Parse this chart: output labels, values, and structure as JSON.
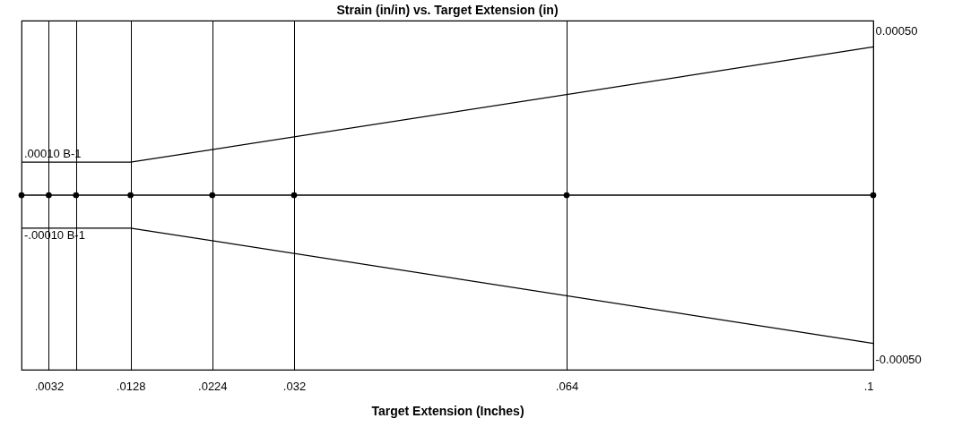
{
  "chart_data": {
    "type": "line",
    "title": "Strain (in/in) vs. Target Extension (in)",
    "xlabel": "Target Extension (Inches)",
    "xlim": [
      0,
      0.1
    ],
    "ylim": [
      -0.00053,
      0.00053
    ],
    "xticks": [
      {
        "value": 0.0032,
        "label": ".0032"
      },
      {
        "value": 0.0064,
        "label": null
      },
      {
        "value": 0.0128,
        "label": ".0128"
      },
      {
        "value": 0.0224,
        "label": ".0224"
      },
      {
        "value": 0.032,
        "label": ".032"
      },
      {
        "value": 0.064,
        "label": ".064"
      },
      {
        "value": 0.1,
        "label": ".1"
      }
    ],
    "yticks": [
      {
        "value": 0.0005,
        "label": "0.00050"
      },
      {
        "value": -0.0005,
        "label": "-0.00050"
      }
    ],
    "grid": "x",
    "series": [
      {
        "color": "#000000",
        "x": [
          0,
          0.0128,
          0.1
        ],
        "values": [
          0.0001,
          0.0001,
          0.00045
        ],
        "marker": "none"
      },
      {
        "color": "#000000",
        "x": [
          0,
          0.0032,
          0.0064,
          0.0128,
          0.0224,
          0.032,
          0.064,
          0.1
        ],
        "values": [
          0,
          0,
          0,
          0,
          0,
          0,
          0,
          0
        ],
        "marker": "circle"
      },
      {
        "color": "#000000",
        "x": [
          0,
          0.0128,
          0.1
        ],
        "values": [
          -0.0001,
          -0.0001,
          -0.00045
        ],
        "marker": "none"
      }
    ],
    "annotations": [
      {
        "text": ".00010  B-1",
        "x": 0,
        "y": 0.0001
      },
      {
        "text": "-.00010  B-1",
        "x": 0,
        "y": -0.0001
      }
    ]
  }
}
